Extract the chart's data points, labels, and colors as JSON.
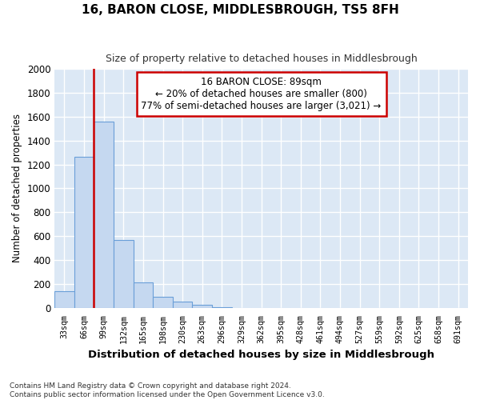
{
  "title": "16, BARON CLOSE, MIDDLESBROUGH, TS5 8FH",
  "subtitle": "Size of property relative to detached houses in Middlesbrough",
  "xlabel": "Distribution of detached houses by size in Middlesbrough",
  "ylabel": "Number of detached properties",
  "categories": [
    "33sqm",
    "66sqm",
    "99sqm",
    "132sqm",
    "165sqm",
    "198sqm",
    "230sqm",
    "263sqm",
    "296sqm",
    "329sqm",
    "362sqm",
    "395sqm",
    "428sqm",
    "461sqm",
    "494sqm",
    "527sqm",
    "559sqm",
    "592sqm",
    "625sqm",
    "658sqm",
    "691sqm"
  ],
  "values": [
    140,
    1265,
    1560,
    570,
    215,
    95,
    55,
    30,
    5,
    0,
    0,
    0,
    0,
    0,
    0,
    0,
    0,
    0,
    0,
    0,
    0
  ],
  "bar_color": "#c5d8f0",
  "bar_edge_color": "#6a9fd8",
  "highlight_line_color": "#cc0000",
  "annotation_box_color": "#cc0000",
  "annotation_line1": "16 BARON CLOSE: 89sqm",
  "annotation_line2": "← 20% of detached houses are smaller (800)",
  "annotation_line3": "77% of semi-detached houses are larger (3,021) →",
  "ylim": [
    0,
    2000
  ],
  "yticks": [
    0,
    200,
    400,
    600,
    800,
    1000,
    1200,
    1400,
    1600,
    1800,
    2000
  ],
  "background_color": "#dce8f5",
  "grid_color": "#ffffff",
  "footer_line1": "Contains HM Land Registry data © Crown copyright and database right 2024.",
  "footer_line2": "Contains public sector information licensed under the Open Government Licence v3.0."
}
